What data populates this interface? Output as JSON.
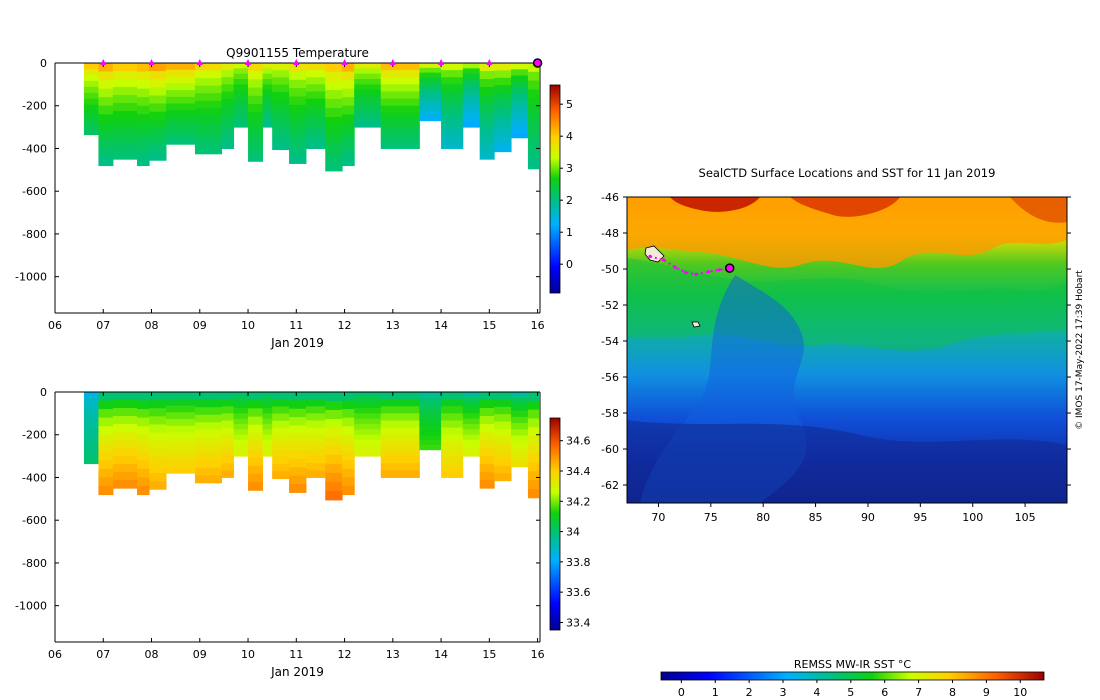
{
  "chart_data": [
    {
      "type": "heatmap",
      "title": "Q9901155  Temperature",
      "xlabel": "Jan 2019",
      "ylabel": "",
      "x_ticks": [
        "06",
        "07",
        "08",
        "09",
        "10",
        "11",
        "12",
        "13",
        "14",
        "15",
        "16"
      ],
      "y_ticks": [
        "0",
        "-200",
        "-400",
        "-600",
        "-800",
        "-1000"
      ],
      "xlim": [
        6,
        16.05
      ],
      "ylim": [
        -1170,
        0
      ],
      "colorbar": {
        "min": -0.9,
        "max": 5.6,
        "ticks": [
          "0",
          "1",
          "2",
          "3",
          "4",
          "5"
        ]
      },
      "profiles": [
        {
          "day": 6.6,
          "max_depth": 335,
          "surface": 4.0,
          "deep": 2.2
        },
        {
          "day": 6.9,
          "max_depth": 480,
          "surface": 4.2,
          "deep": 2.0
        },
        {
          "day": 7.2,
          "max_depth": 450,
          "surface": 4.0,
          "deep": 2.1
        },
        {
          "day": 7.7,
          "max_depth": 480,
          "surface": 4.1,
          "deep": 2.0
        },
        {
          "day": 7.95,
          "max_depth": 455,
          "surface": 4.3,
          "deep": 2.0
        },
        {
          "day": 8.3,
          "max_depth": 380,
          "surface": 4.2,
          "deep": 2.1
        },
        {
          "day": 8.9,
          "max_depth": 425,
          "surface": 3.8,
          "deep": 2.1
        },
        {
          "day": 9.45,
          "max_depth": 400,
          "surface": 3.6,
          "deep": 2.0
        },
        {
          "day": 9.7,
          "max_depth": 300,
          "surface": 3.4,
          "deep": 2.1
        },
        {
          "day": 10.0,
          "max_depth": 460,
          "surface": 3.8,
          "deep": 2.1
        },
        {
          "day": 10.3,
          "max_depth": 300,
          "surface": 3.6,
          "deep": 2.0
        },
        {
          "day": 10.5,
          "max_depth": 405,
          "surface": 3.5,
          "deep": 2.0
        },
        {
          "day": 10.85,
          "max_depth": 470,
          "surface": 3.7,
          "deep": 2.0
        },
        {
          "day": 11.2,
          "max_depth": 400,
          "surface": 3.8,
          "deep": 2.0
        },
        {
          "day": 11.6,
          "max_depth": 505,
          "surface": 4.0,
          "deep": 2.1
        },
        {
          "day": 11.95,
          "max_depth": 480,
          "surface": 4.2,
          "deep": 2.0
        },
        {
          "day": 12.2,
          "max_depth": 300,
          "surface": 3.6,
          "deep": 2.0
        },
        {
          "day": 12.75,
          "max_depth": 400,
          "surface": 4.1,
          "deep": 2.1
        },
        {
          "day": 13.55,
          "max_depth": 270,
          "surface": 3.5,
          "deep": 1.3
        },
        {
          "day": 14.0,
          "max_depth": 400,
          "surface": 3.4,
          "deep": 1.6
        },
        {
          "day": 14.45,
          "max_depth": 300,
          "surface": 3.2,
          "deep": 1.2
        },
        {
          "day": 14.8,
          "max_depth": 450,
          "surface": 3.5,
          "deep": 1.6
        },
        {
          "day": 15.1,
          "max_depth": 415,
          "surface": 3.6,
          "deep": 1.4
        },
        {
          "day": 15.45,
          "max_depth": 350,
          "surface": 3.4,
          "deep": 1.2
        },
        {
          "day": 15.8,
          "max_depth": 495,
          "surface": 3.3,
          "deep": 2.0
        }
      ],
      "markers_days": [
        7,
        8,
        9,
        10,
        11,
        12,
        13,
        14,
        15
      ],
      "current_day": 16,
      "marker_color": "#ff00ff"
    },
    {
      "type": "heatmap",
      "title": "",
      "xlabel": "Jan 2019",
      "ylabel": "",
      "x_ticks": [
        "06",
        "07",
        "08",
        "09",
        "10",
        "11",
        "12",
        "13",
        "14",
        "15",
        "16"
      ],
      "y_ticks": [
        "0",
        "-200",
        "-400",
        "-600",
        "-800",
        "-1000"
      ],
      "xlim": [
        6,
        16.05
      ],
      "ylim": [
        -1170,
        0
      ],
      "colorbar": {
        "min": 33.35,
        "max": 34.75,
        "ticks": [
          "33.4",
          "33.6",
          "33.8",
          "34",
          "34.2",
          "34.4",
          "34.6"
        ]
      },
      "profiles": [
        {
          "day": 6.6,
          "max_depth": 335,
          "surface": 33.85,
          "deep": 34.0
        },
        {
          "day": 6.9,
          "max_depth": 480,
          "surface": 34.0,
          "deep": 34.5
        },
        {
          "day": 7.2,
          "max_depth": 450,
          "surface": 34.0,
          "deep": 34.5
        },
        {
          "day": 7.7,
          "max_depth": 480,
          "surface": 34.0,
          "deep": 34.5
        },
        {
          "day": 7.95,
          "max_depth": 455,
          "surface": 34.0,
          "deep": 34.45
        },
        {
          "day": 8.3,
          "max_depth": 380,
          "surface": 34.0,
          "deep": 34.4
        },
        {
          "day": 8.9,
          "max_depth": 425,
          "surface": 34.0,
          "deep": 34.45
        },
        {
          "day": 9.45,
          "max_depth": 400,
          "surface": 34.0,
          "deep": 34.45
        },
        {
          "day": 9.7,
          "max_depth": 300,
          "surface": 34.0,
          "deep": 34.3
        },
        {
          "day": 10.0,
          "max_depth": 460,
          "surface": 34.0,
          "deep": 34.5
        },
        {
          "day": 10.3,
          "max_depth": 300,
          "surface": 34.0,
          "deep": 34.3
        },
        {
          "day": 10.5,
          "max_depth": 405,
          "surface": 34.0,
          "deep": 34.45
        },
        {
          "day": 10.85,
          "max_depth": 470,
          "surface": 34.0,
          "deep": 34.5
        },
        {
          "day": 11.2,
          "max_depth": 400,
          "surface": 34.0,
          "deep": 34.45
        },
        {
          "day": 11.6,
          "max_depth": 505,
          "surface": 34.0,
          "deep": 34.55
        },
        {
          "day": 11.95,
          "max_depth": 480,
          "surface": 34.0,
          "deep": 34.5
        },
        {
          "day": 12.2,
          "max_depth": 300,
          "surface": 34.0,
          "deep": 34.3
        },
        {
          "day": 12.75,
          "max_depth": 400,
          "surface": 34.0,
          "deep": 34.45
        },
        {
          "day": 13.55,
          "max_depth": 270,
          "surface": 33.95,
          "deep": 34.15
        },
        {
          "day": 14.0,
          "max_depth": 400,
          "surface": 34.0,
          "deep": 34.4
        },
        {
          "day": 14.45,
          "max_depth": 300,
          "surface": 33.95,
          "deep": 34.3
        },
        {
          "day": 14.8,
          "max_depth": 450,
          "surface": 34.0,
          "deep": 34.5
        },
        {
          "day": 15.1,
          "max_depth": 415,
          "surface": 34.0,
          "deep": 34.45
        },
        {
          "day": 15.45,
          "max_depth": 350,
          "surface": 33.95,
          "deep": 34.35
        },
        {
          "day": 15.8,
          "max_depth": 495,
          "surface": 34.0,
          "deep": 34.5
        }
      ]
    },
    {
      "type": "heatmap",
      "title": "SealCTD Surface Locations and SST for 11 Jan 2019",
      "xlabel": "",
      "ylabel": "",
      "x_ticks": [
        "70",
        "75",
        "80",
        "85",
        "90",
        "95",
        "100",
        "105"
      ],
      "y_ticks": [
        "-46",
        "-48",
        "-50",
        "-52",
        "-54",
        "-56",
        "-58",
        "-60",
        "-62"
      ],
      "xlim": [
        67,
        109
      ],
      "ylim": [
        -63,
        -46
      ],
      "colorbar": {
        "label": "REMSS MW-IR SST °C",
        "min": -0.6,
        "max": 10.7,
        "ticks": [
          "0",
          "1",
          "2",
          "3",
          "4",
          "5",
          "6",
          "7",
          "8",
          "9",
          "10"
        ]
      },
      "track": [
        [
          69.2,
          -49.3
        ],
        [
          70.5,
          -49.5
        ],
        [
          71.6,
          -49.9
        ],
        [
          72.6,
          -50.2
        ],
        [
          73.6,
          -50.3
        ],
        [
          74.8,
          -50.15
        ],
        [
          75.8,
          -50.05
        ],
        [
          76.8,
          -49.95
        ]
      ],
      "current_location": [
        76.8,
        -49.95
      ],
      "credit": "© IMOS 17-May-2022 17:39 Hobart"
    }
  ]
}
